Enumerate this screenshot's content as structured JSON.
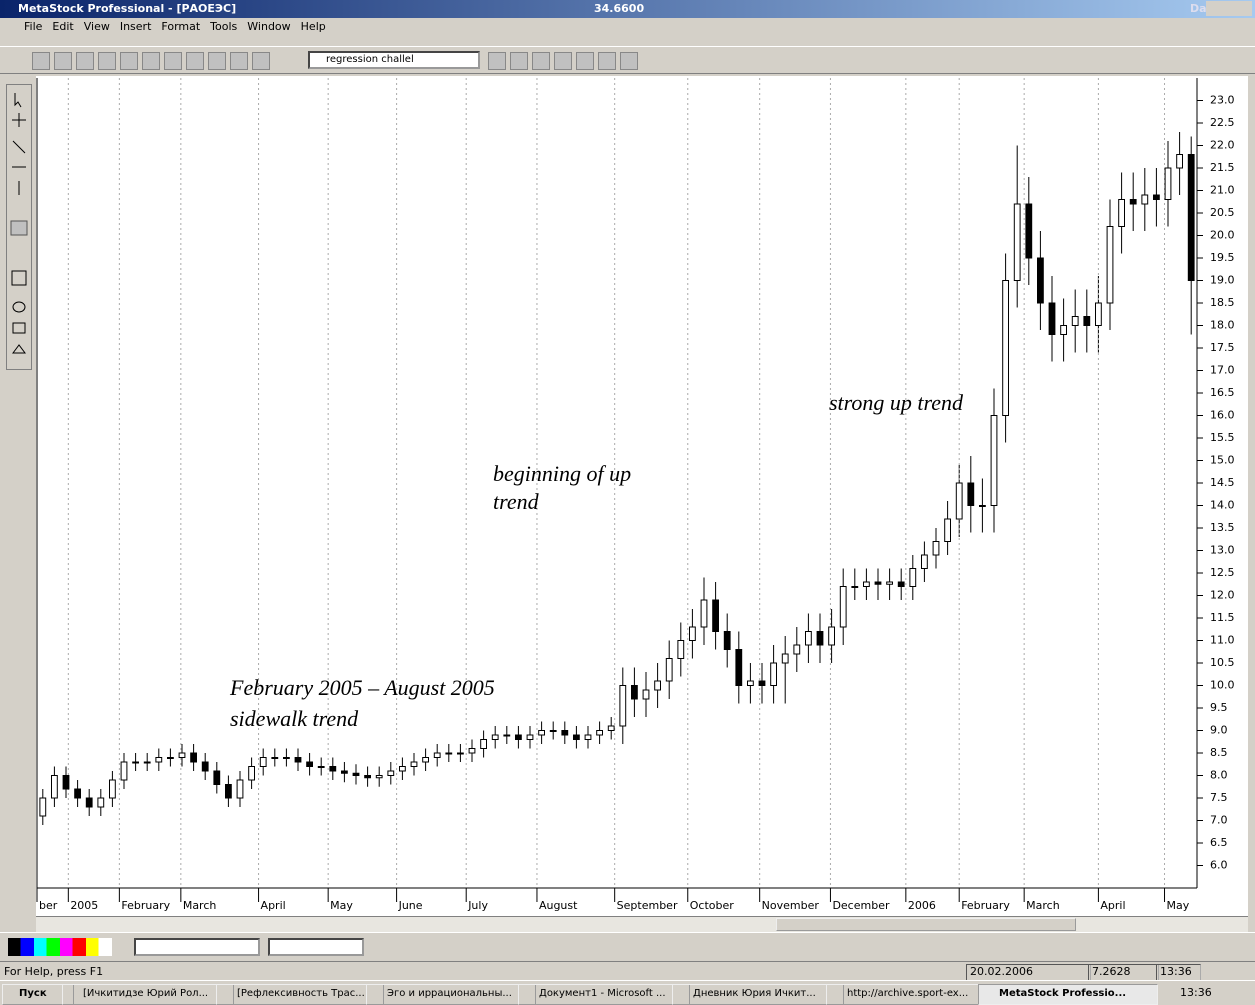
{
  "ui": {
    "title": "MetaStock Professional - [РАОЕЭС]",
    "price": "34.6600",
    "period": "Daily",
    "menu": [
      "File",
      "Edit",
      "View",
      "Insert",
      "Format",
      "Tools",
      "Window",
      "Help"
    ],
    "combo": "regression challel",
    "status": {
      "help": "For Help, press F1",
      "date": "20.02.2006",
      "value": "7.2628",
      "time": "13:36"
    },
    "taskbar": {
      "start": "Пуск",
      "items": [
        "[Ичкитидзе Юрий Рол...",
        "[Рефлексивность Трас...",
        "Эго и иррациональны...",
        "Документ1 - Microsoft ...",
        "Дневник Юрия Ичкит...",
        "http://archive.sport-ex...",
        "MetaStock Professio..."
      ],
      "clock": "13:36"
    }
  },
  "chart_data": {
    "type": "candlestick",
    "open": [
      7.1,
      7.5,
      8.0,
      7.7,
      7.5,
      7.3,
      7.5,
      7.9,
      8.3,
      8.3,
      8.3,
      8.4,
      8.4,
      8.5,
      8.3,
      8.1,
      7.8,
      7.5,
      7.9,
      8.2,
      8.4,
      8.4,
      8.4,
      8.3,
      8.2,
      8.2,
      8.1,
      8.05,
      8.0,
      7.95,
      8.0,
      8.1,
      8.2,
      8.3,
      8.4,
      8.5,
      8.5,
      8.5,
      8.6,
      8.8,
      8.9,
      8.9,
      8.8,
      8.9,
      9.0,
      9.0,
      8.9,
      8.8,
      8.9,
      9.0,
      9.1,
      10.0,
      9.7,
      9.9,
      10.1,
      10.6,
      11.0,
      11.3,
      11.9,
      11.2,
      10.8,
      10.0,
      10.1,
      10.0,
      10.5,
      10.7,
      10.9,
      11.2,
      10.9,
      11.3,
      12.2,
      12.2,
      12.3,
      12.25,
      12.3,
      12.2,
      12.6,
      12.9,
      13.2,
      13.7,
      14.5,
      14.0,
      14.0,
      16.0,
      19.0,
      20.7,
      19.5,
      18.5,
      17.8,
      18.0,
      18.2,
      18.0,
      18.5,
      20.2,
      20.8,
      20.7,
      20.9,
      20.8,
      21.5,
      21.8
    ],
    "high": [
      7.7,
      8.2,
      8.2,
      7.9,
      7.7,
      7.7,
      8.1,
      8.5,
      8.5,
      8.5,
      8.6,
      8.6,
      8.7,
      8.7,
      8.5,
      8.3,
      8.0,
      8.1,
      8.4,
      8.6,
      8.6,
      8.6,
      8.6,
      8.5,
      8.4,
      8.4,
      8.3,
      8.25,
      8.2,
      8.2,
      8.3,
      8.4,
      8.5,
      8.6,
      8.7,
      8.7,
      8.7,
      8.8,
      9.0,
      9.1,
      9.1,
      9.1,
      9.1,
      9.2,
      9.2,
      9.2,
      9.1,
      9.1,
      9.2,
      9.3,
      10.4,
      10.4,
      10.3,
      10.5,
      11.0,
      11.4,
      11.7,
      12.4,
      12.3,
      11.6,
      11.2,
      10.5,
      10.5,
      10.9,
      11.1,
      11.3,
      11.6,
      11.6,
      11.7,
      12.6,
      12.6,
      12.6,
      12.6,
      12.6,
      12.6,
      12.9,
      13.2,
      13.5,
      14.1,
      14.9,
      15.1,
      14.6,
      16.6,
      19.6,
      22.0,
      21.3,
      20.1,
      19.1,
      18.6,
      18.8,
      18.8,
      19.1,
      20.8,
      21.4,
      21.4,
      21.5,
      21.5,
      22.1,
      22.3,
      22.2
    ],
    "low": [
      6.9,
      7.3,
      7.5,
      7.3,
      7.1,
      7.1,
      7.3,
      7.7,
      8.1,
      8.1,
      8.1,
      8.2,
      8.2,
      8.1,
      7.9,
      7.6,
      7.3,
      7.3,
      7.7,
      8.0,
      8.2,
      8.2,
      8.1,
      8.0,
      8.0,
      7.9,
      7.85,
      7.8,
      7.75,
      7.75,
      7.8,
      7.9,
      8.0,
      8.1,
      8.2,
      8.3,
      8.3,
      8.3,
      8.4,
      8.6,
      8.7,
      8.6,
      8.6,
      8.7,
      8.8,
      8.7,
      8.6,
      8.6,
      8.7,
      8.8,
      8.7,
      9.3,
      9.3,
      9.5,
      9.7,
      10.2,
      10.6,
      10.9,
      10.8,
      10.4,
      9.6,
      9.6,
      9.6,
      9.6,
      9.6,
      10.3,
      10.5,
      10.5,
      10.5,
      10.9,
      11.9,
      11.9,
      11.9,
      11.9,
      11.9,
      11.9,
      12.3,
      12.6,
      12.9,
      13.3,
      13.4,
      13.4,
      13.4,
      15.4,
      18.4,
      18.9,
      17.9,
      17.2,
      17.2,
      17.4,
      17.4,
      17.4,
      17.9,
      19.6,
      20.1,
      20.1,
      20.2,
      20.2,
      20.9,
      17.8
    ],
    "close": [
      7.5,
      8.0,
      7.7,
      7.5,
      7.3,
      7.5,
      7.9,
      8.3,
      8.3,
      8.3,
      8.4,
      8.4,
      8.5,
      8.3,
      8.1,
      7.8,
      7.5,
      7.9,
      8.2,
      8.4,
      8.4,
      8.4,
      8.3,
      8.2,
      8.2,
      8.1,
      8.05,
      8.0,
      7.95,
      8.0,
      8.1,
      8.2,
      8.3,
      8.4,
      8.5,
      8.5,
      8.5,
      8.6,
      8.8,
      8.9,
      8.9,
      8.8,
      8.9,
      9.0,
      9.0,
      8.9,
      8.8,
      8.9,
      9.0,
      9.1,
      10.0,
      9.7,
      9.9,
      10.1,
      10.6,
      11.0,
      11.3,
      11.9,
      11.2,
      10.8,
      10.0,
      10.1,
      10.0,
      10.5,
      10.7,
      10.9,
      11.2,
      10.9,
      11.3,
      12.2,
      12.2,
      12.3,
      12.25,
      12.3,
      12.2,
      12.6,
      12.9,
      13.2,
      13.7,
      14.5,
      14.0,
      14.0,
      16.0,
      19.0,
      20.7,
      19.5,
      18.5,
      17.8,
      18.0,
      18.2,
      18.0,
      18.5,
      20.2,
      20.8,
      20.7,
      20.9,
      20.8,
      21.5,
      21.8,
      19.0
    ],
    "xlim": [
      0,
      100
    ],
    "xticks": [
      {
        "value": 0,
        "label": "ber"
      },
      {
        "value": 2.7,
        "label": "2005"
      },
      {
        "value": 7.1,
        "label": "February"
      },
      {
        "value": 12.4,
        "label": "March"
      },
      {
        "value": 19.1,
        "label": "April"
      },
      {
        "value": 25.1,
        "label": "May"
      },
      {
        "value": 31,
        "label": "June"
      },
      {
        "value": 37,
        "label": "July"
      },
      {
        "value": 43.1,
        "label": "August"
      },
      {
        "value": 49.8,
        "label": "September"
      },
      {
        "value": 56.1,
        "label": "October"
      },
      {
        "value": 62.3,
        "label": "November"
      },
      {
        "value": 68.4,
        "label": "December"
      },
      {
        "value": 74.9,
        "label": "2006"
      },
      {
        "value": 79.5,
        "label": "February"
      },
      {
        "value": 85.1,
        "label": "March"
      },
      {
        "value": 91.5,
        "label": "April"
      },
      {
        "value": 97.2,
        "label": "May"
      }
    ],
    "ylim": [
      5.5,
      23.5
    ],
    "yticks": [
      {
        "value": 6,
        "label": "6.0"
      },
      6.5,
      {
        "value": 7,
        "label": "7.0"
      },
      7.5,
      {
        "value": 8,
        "label": "8.0"
      },
      8.5,
      {
        "value": 9,
        "label": "9.0"
      },
      9.5,
      {
        "value": 10,
        "label": "10.0"
      },
      10.5,
      {
        "value": 11,
        "label": "11.0"
      },
      11.5,
      {
        "value": 12,
        "label": "12.0"
      },
      12.5,
      {
        "value": 13,
        "label": "13.0"
      },
      13.5,
      {
        "value": 14,
        "label": "14.0"
      },
      14.5,
      {
        "value": 15,
        "label": "15.0"
      },
      15.5,
      {
        "value": 16,
        "label": "16.0"
      },
      16.5,
      {
        "value": 17,
        "label": "17.0"
      },
      17.5,
      {
        "value": 18,
        "label": "18.0"
      },
      18.5,
      {
        "value": 19,
        "label": "19.0"
      },
      19.5,
      {
        "value": 20,
        "label": "20.0"
      },
      20.5,
      {
        "value": 21,
        "label": "21.0"
      },
      21.5,
      {
        "value": 22,
        "label": "22.0"
      },
      22.5,
      {
        "value": 23,
        "label": "23.0"
      }
    ],
    "grid": "x",
    "annotations": [
      "February 2005 – August 2005",
      "sidewalk trend",
      "beginning of up",
      "trend",
      "strong up trend"
    ]
  }
}
